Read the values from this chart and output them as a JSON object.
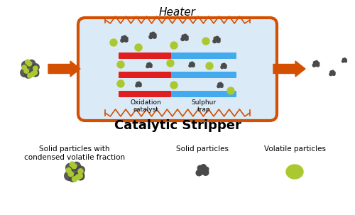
{
  "title": "Catalytic Stripper",
  "heater_label": "Heater",
  "oxidation_label": "Oxidation\ncatalyst",
  "sulphur_label": "Sulphur\ntrap",
  "legend_labels": [
    "Solid particles with\ncondensed volatile fraction",
    "Solid particles",
    "Volatile particles"
  ],
  "bg_color": "#ffffff",
  "box_bg": "#daeaf7",
  "box_edge": "#d45000",
  "arrow_color": "#d45000",
  "red_bar_color": "#e02020",
  "blue_bar_color": "#44aaee",
  "dark_particle_color": "#4a4a4a",
  "green_particle_color": "#aac830",
  "heater_color": "#d45000",
  "figw": 5.0,
  "figh": 3.03,
  "dpi": 100
}
